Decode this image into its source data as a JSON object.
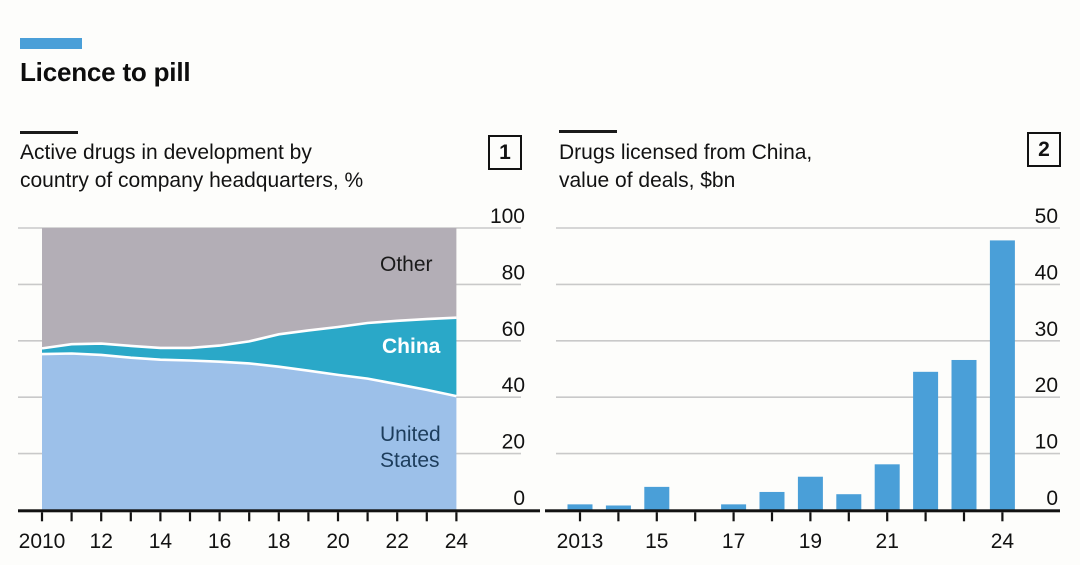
{
  "header": {
    "title": "Licence to pill",
    "tag_color": "#4a9fd8",
    "background": "#fdfdfb",
    "text_color": "#121212",
    "grid_color": "#c9c9c9",
    "axis_color": "#121212"
  },
  "panels": [
    {
      "index_label": "1",
      "subtitle_lines": [
        "Active drugs in development by",
        "country of company headquarters, %"
      ]
    },
    {
      "index_label": "2",
      "subtitle_lines": [
        "Drugs licensed from China,",
        "value of deals, $bn"
      ]
    }
  ],
  "chart_data": [
    {
      "type": "area",
      "stacked": true,
      "title": "Active drugs in development by country of company headquarters, %",
      "x": [
        2010,
        2011,
        2012,
        2013,
        2014,
        2015,
        2016,
        2017,
        2018,
        2019,
        2020,
        2021,
        2022,
        2023,
        2024
      ],
      "series": [
        {
          "name": "United States",
          "color": "#9cc0e9",
          "label_color": "#1d3d5c",
          "values": [
            55.3,
            55.5,
            55.0,
            54.0,
            53.3,
            53.0,
            52.6,
            52.0,
            50.8,
            49.4,
            47.9,
            46.6,
            44.6,
            42.6,
            40.4
          ]
        },
        {
          "name": "China",
          "color": "#2aa8c8",
          "label_color": "#ffffff",
          "values": [
            2.0,
            3.3,
            4.0,
            4.2,
            4.2,
            4.5,
            5.7,
            7.8,
            11.5,
            14.3,
            17.0,
            19.7,
            22.5,
            25.1,
            27.8
          ]
        },
        {
          "name": "Other",
          "color": "#b3aeb6",
          "label_color": "#1a1a1a",
          "values": [
            42.7,
            41.2,
            41.0,
            41.8,
            42.5,
            42.5,
            41.7,
            40.2,
            37.7,
            36.3,
            35.1,
            33.7,
            32.9,
            32.3,
            31.8
          ]
        }
      ],
      "ylim": [
        0,
        100
      ],
      "yticks": [
        0,
        20,
        40,
        60,
        80,
        100
      ],
      "xtick_labels": [
        "2010",
        "12",
        "14",
        "16",
        "18",
        "20",
        "22",
        "24"
      ],
      "grid": true,
      "axis_labels_side": "right",
      "boundary_line_color": "#ffffff"
    },
    {
      "type": "bar",
      "title": "Drugs licensed from China, value of deals, $bn",
      "x": [
        2013,
        2014,
        2015,
        2016,
        2017,
        2018,
        2019,
        2020,
        2021,
        2022,
        2023,
        2024
      ],
      "values": [
        1.0,
        0.8,
        4.1,
        0,
        1.0,
        3.2,
        5.9,
        2.8,
        8.1,
        24.5,
        26.6,
        47.8
      ],
      "bar_color": "#4a9fd8",
      "ylim": [
        0,
        50
      ],
      "yticks": [
        0,
        10,
        20,
        30,
        40,
        50
      ],
      "xtick_labels": [
        "2013",
        "15",
        "17",
        "19",
        "21",
        "24"
      ],
      "grid": true,
      "axis_labels_side": "right"
    }
  ]
}
